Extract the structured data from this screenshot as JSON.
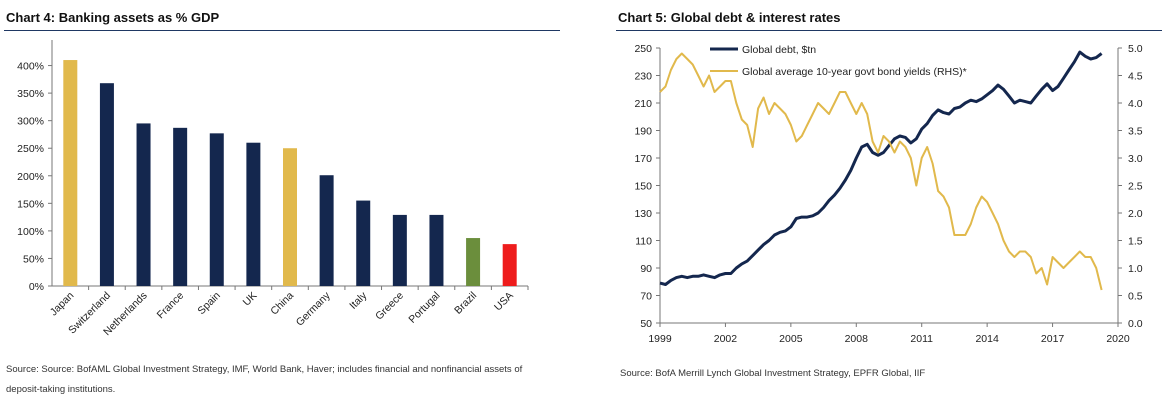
{
  "left_panel": {
    "title": "Chart 4: Banking assets as % GDP",
    "source": "Source: Source: BofAML Global Investment Strategy, IMF, World Bank, Haver; includes financial and nonfinancial assets of deposit-taking institutions."
  },
  "right_panel": {
    "title": "Chart 5: Global debt & interest rates",
    "source": "Source: BofA Merrill Lynch Global Investment Strategy, EPFR Global, IIF"
  },
  "colors": {
    "navy": "#14274e",
    "gold": "#e1b94c",
    "green": "#6b8e3c",
    "red": "#ee1c1c"
  },
  "chart_data": [
    {
      "type": "bar",
      "title": "Chart 4: Banking assets as % GDP",
      "categories": [
        "Japan",
        "Switzerland",
        "Netherlands",
        "France",
        "Spain",
        "UK",
        "China",
        "Germany",
        "Italy",
        "Greece",
        "Portugal",
        "Brazil",
        "USA"
      ],
      "values": [
        410,
        368,
        295,
        287,
        277,
        260,
        250,
        201,
        155,
        129,
        129,
        87,
        76
      ],
      "bar_colors": [
        "#e1b94c",
        "#14274e",
        "#14274e",
        "#14274e",
        "#14274e",
        "#14274e",
        "#e1b94c",
        "#14274e",
        "#14274e",
        "#14274e",
        "#14274e",
        "#6b8e3c",
        "#ee1c1c"
      ],
      "unit": "%",
      "ylim": [
        0,
        450
      ],
      "yticks": [
        0,
        50,
        100,
        150,
        200,
        250,
        300,
        350,
        400
      ],
      "ytick_labels": [
        "0%",
        "50%",
        "100%",
        "150%",
        "200%",
        "250%",
        "300%",
        "350%",
        "400%"
      ],
      "grid": false
    },
    {
      "type": "line",
      "title": "Chart 5: Global debt & interest rates",
      "xlim": [
        1999,
        2020
      ],
      "xticks": [
        1999,
        2002,
        2005,
        2008,
        2011,
        2014,
        2017,
        2020
      ],
      "ylim_left": [
        50,
        250
      ],
      "yticks_left": [
        50,
        70,
        90,
        110,
        130,
        150,
        170,
        190,
        210,
        230,
        250
      ],
      "ylim_right": [
        0.0,
        5.0
      ],
      "yticks_right": [
        "0.0",
        "0.5",
        "1.0",
        "1.5",
        "2.0",
        "2.5",
        "3.0",
        "3.5",
        "4.0",
        "4.5",
        "5.0"
      ],
      "legend_position": "top-left",
      "grid": false,
      "series": [
        {
          "name": "Global debt, $tn",
          "axis": "left",
          "color": "#14274e",
          "points": [
            [
              1999.0,
              79
            ],
            [
              1999.25,
              78
            ],
            [
              1999.5,
              81
            ],
            [
              1999.75,
              83
            ],
            [
              2000.0,
              84
            ],
            [
              2000.25,
              83
            ],
            [
              2000.5,
              84
            ],
            [
              2000.75,
              84
            ],
            [
              2001.0,
              85
            ],
            [
              2001.25,
              84
            ],
            [
              2001.5,
              83
            ],
            [
              2001.75,
              85
            ],
            [
              2002.0,
              86
            ],
            [
              2002.25,
              86
            ],
            [
              2002.5,
              90
            ],
            [
              2002.75,
              93
            ],
            [
              2003.0,
              95
            ],
            [
              2003.25,
              99
            ],
            [
              2003.5,
              103
            ],
            [
              2003.75,
              107
            ],
            [
              2004.0,
              110
            ],
            [
              2004.25,
              114
            ],
            [
              2004.5,
              116
            ],
            [
              2004.75,
              117
            ],
            [
              2005.0,
              120
            ],
            [
              2005.25,
              126
            ],
            [
              2005.5,
              127
            ],
            [
              2005.75,
              127
            ],
            [
              2006.0,
              128
            ],
            [
              2006.25,
              130
            ],
            [
              2006.5,
              134
            ],
            [
              2006.75,
              139
            ],
            [
              2007.0,
              143
            ],
            [
              2007.25,
              148
            ],
            [
              2007.5,
              154
            ],
            [
              2007.75,
              161
            ],
            [
              2008.0,
              170
            ],
            [
              2008.25,
              178
            ],
            [
              2008.5,
              180
            ],
            [
              2008.75,
              174
            ],
            [
              2009.0,
              172
            ],
            [
              2009.25,
              174
            ],
            [
              2009.5,
              179
            ],
            [
              2009.75,
              184
            ],
            [
              2010.0,
              186
            ],
            [
              2010.25,
              185
            ],
            [
              2010.5,
              181
            ],
            [
              2010.75,
              184
            ],
            [
              2011.0,
              191
            ],
            [
              2011.25,
              195
            ],
            [
              2011.5,
              201
            ],
            [
              2011.75,
              205
            ],
            [
              2012.0,
              203
            ],
            [
              2012.25,
              202
            ],
            [
              2012.5,
              206
            ],
            [
              2012.75,
              207
            ],
            [
              2013.0,
              210
            ],
            [
              2013.25,
              212
            ],
            [
              2013.5,
              211
            ],
            [
              2013.75,
              213
            ],
            [
              2014.0,
              216
            ],
            [
              2014.25,
              219
            ],
            [
              2014.5,
              223
            ],
            [
              2014.75,
              220
            ],
            [
              2015.0,
              215
            ],
            [
              2015.25,
              210
            ],
            [
              2015.5,
              212
            ],
            [
              2015.75,
              211
            ],
            [
              2016.0,
              210
            ],
            [
              2016.25,
              215
            ],
            [
              2016.5,
              220
            ],
            [
              2016.75,
              224
            ],
            [
              2017.0,
              219
            ],
            [
              2017.25,
              222
            ],
            [
              2017.5,
              228
            ],
            [
              2017.75,
              234
            ],
            [
              2018.0,
              240
            ],
            [
              2018.25,
              247
            ],
            [
              2018.5,
              244
            ],
            [
              2018.75,
              242
            ],
            [
              2019.0,
              243
            ],
            [
              2019.25,
              246
            ]
          ]
        },
        {
          "name": "Global average 10-year govt bond yields (RHS)*",
          "axis": "right",
          "color": "#e1b94c",
          "points": [
            [
              1999.0,
              4.2
            ],
            [
              1999.25,
              4.3
            ],
            [
              1999.5,
              4.6
            ],
            [
              1999.75,
              4.8
            ],
            [
              2000.0,
              4.9
            ],
            [
              2000.25,
              4.8
            ],
            [
              2000.5,
              4.7
            ],
            [
              2000.75,
              4.5
            ],
            [
              2001.0,
              4.3
            ],
            [
              2001.25,
              4.5
            ],
            [
              2001.5,
              4.2
            ],
            [
              2001.75,
              4.3
            ],
            [
              2002.0,
              4.4
            ],
            [
              2002.25,
              4.4
            ],
            [
              2002.5,
              4.0
            ],
            [
              2002.75,
              3.7
            ],
            [
              2003.0,
              3.6
            ],
            [
              2003.25,
              3.2
            ],
            [
              2003.5,
              3.9
            ],
            [
              2003.75,
              4.1
            ],
            [
              2004.0,
              3.8
            ],
            [
              2004.25,
              4.0
            ],
            [
              2004.5,
              3.9
            ],
            [
              2004.75,
              3.8
            ],
            [
              2005.0,
              3.6
            ],
            [
              2005.25,
              3.3
            ],
            [
              2005.5,
              3.4
            ],
            [
              2005.75,
              3.6
            ],
            [
              2006.0,
              3.8
            ],
            [
              2006.25,
              4.0
            ],
            [
              2006.5,
              3.9
            ],
            [
              2006.75,
              3.8
            ],
            [
              2007.0,
              4.0
            ],
            [
              2007.25,
              4.2
            ],
            [
              2007.5,
              4.2
            ],
            [
              2007.75,
              4.0
            ],
            [
              2008.0,
              3.8
            ],
            [
              2008.25,
              4.0
            ],
            [
              2008.5,
              3.8
            ],
            [
              2008.75,
              3.3
            ],
            [
              2009.0,
              3.1
            ],
            [
              2009.25,
              3.4
            ],
            [
              2009.5,
              3.3
            ],
            [
              2009.75,
              3.1
            ],
            [
              2010.0,
              3.3
            ],
            [
              2010.25,
              3.2
            ],
            [
              2010.5,
              3.0
            ],
            [
              2010.75,
              2.5
            ],
            [
              2011.0,
              3.0
            ],
            [
              2011.25,
              3.2
            ],
            [
              2011.5,
              2.9
            ],
            [
              2011.75,
              2.4
            ],
            [
              2012.0,
              2.3
            ],
            [
              2012.25,
              2.1
            ],
            [
              2012.5,
              1.6
            ],
            [
              2012.75,
              1.6
            ],
            [
              2013.0,
              1.6
            ],
            [
              2013.25,
              1.8
            ],
            [
              2013.5,
              2.1
            ],
            [
              2013.75,
              2.3
            ],
            [
              2014.0,
              2.2
            ],
            [
              2014.25,
              2.0
            ],
            [
              2014.5,
              1.8
            ],
            [
              2014.75,
              1.5
            ],
            [
              2015.0,
              1.3
            ],
            [
              2015.25,
              1.2
            ],
            [
              2015.5,
              1.3
            ],
            [
              2015.75,
              1.3
            ],
            [
              2016.0,
              1.2
            ],
            [
              2016.25,
              0.9
            ],
            [
              2016.5,
              1.0
            ],
            [
              2016.75,
              0.7
            ],
            [
              2017.0,
              1.2
            ],
            [
              2017.25,
              1.1
            ],
            [
              2017.5,
              1.0
            ],
            [
              2017.75,
              1.1
            ],
            [
              2018.0,
              1.2
            ],
            [
              2018.25,
              1.3
            ],
            [
              2018.5,
              1.2
            ],
            [
              2018.75,
              1.2
            ],
            [
              2019.0,
              1.0
            ],
            [
              2019.25,
              0.6
            ]
          ]
        }
      ]
    }
  ]
}
